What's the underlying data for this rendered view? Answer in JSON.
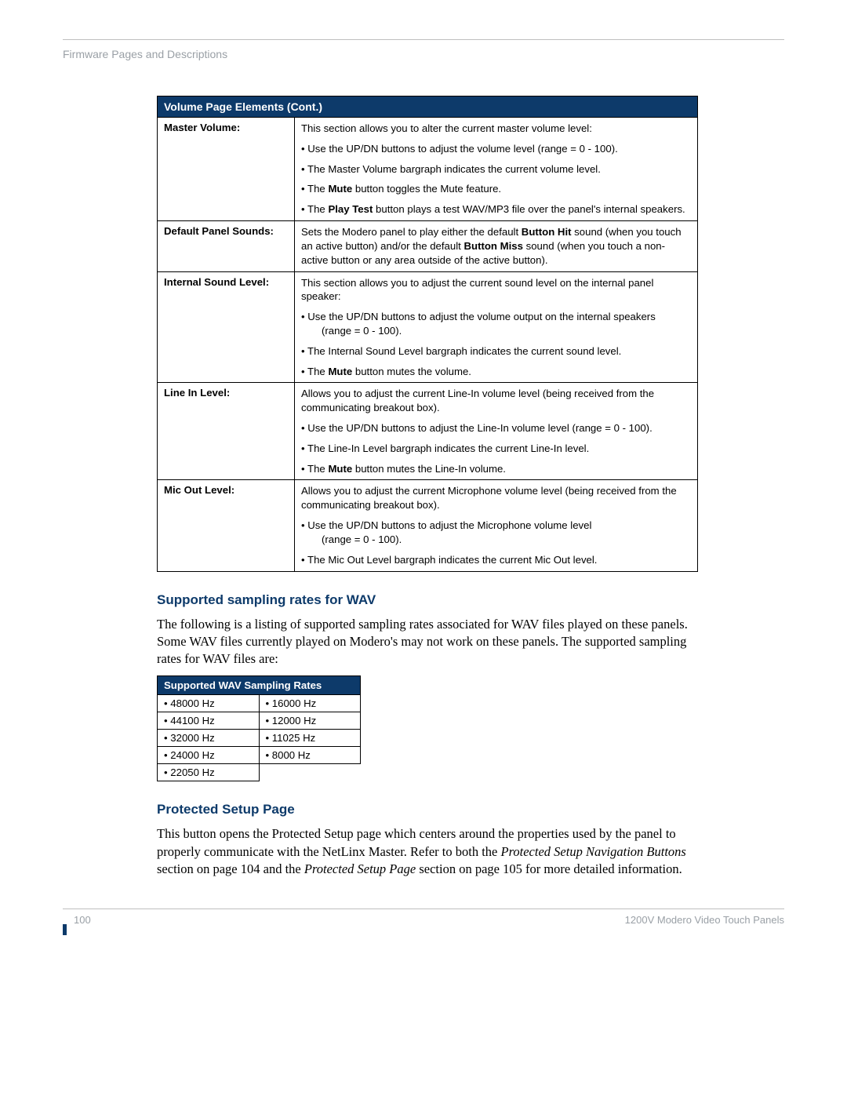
{
  "header": {
    "breadcrumb": "Firmware Pages and Descriptions"
  },
  "table1": {
    "title": "Volume Page Elements (Cont.)",
    "rows": [
      {
        "label": "Master Volume:",
        "lines": [
          {
            "text": "This section allows you to alter the current master volume level:"
          },
          {
            "bullet": true,
            "text": "Use the UP/DN buttons to adjust the volume level (range = 0 - 100)."
          },
          {
            "bullet": true,
            "text": "The Master Volume bargraph indicates the current volume level."
          },
          {
            "bullet": true,
            "html": "The <b>Mute</b> button toggles the Mute feature."
          },
          {
            "bullet": true,
            "html": "The <b>Play Test</b> button plays a test WAV/MP3 file over the panel's internal speakers.",
            "indent_cont": true
          }
        ]
      },
      {
        "label": "Default Panel Sounds:",
        "lines": [
          {
            "html": "Sets the Modero panel to play either the default <b>Button Hit</b> sound (when you touch an active button) and/or the default <b>Button Miss</b> sound (when you touch a non-active button or any area outside of the active button)."
          }
        ]
      },
      {
        "label": "Internal Sound Level:",
        "lines": [
          {
            "text": "This section allows you to adjust the current sound level on the internal panel speaker:"
          },
          {
            "bullet": true,
            "html": "Use the UP/DN buttons to adjust the volume output on the internal speakers<br><span class=\"indent-cont\">(range = 0 - 100).</span>"
          },
          {
            "bullet": true,
            "text": "The Internal Sound Level bargraph indicates the current sound level."
          },
          {
            "bullet": true,
            "html": "The <b>Mute</b> button mutes the volume."
          }
        ]
      },
      {
        "label": "Line In Level:",
        "lines": [
          {
            "text": "Allows you to adjust the current Line-In volume level (being received from the communicating breakout box)."
          },
          {
            "bullet": true,
            "text": "Use the UP/DN buttons to adjust the Line-In volume level (range = 0 - 100)."
          },
          {
            "bullet": true,
            "text": "The Line-In Level bargraph indicates the current Line-In level."
          },
          {
            "bullet": true,
            "html": "The <b>Mute</b> button mutes the Line-In volume."
          }
        ]
      },
      {
        "label": "Mic Out Level:",
        "lines": [
          {
            "text": "Allows you to adjust the current Microphone volume level (being received from the communicating breakout box)."
          },
          {
            "bullet": true,
            "html": "Use the UP/DN buttons to adjust the Microphone volume level<br><span class=\"indent-cont\">(range = 0 - 100).</span>"
          },
          {
            "bullet": true,
            "text": "The Mic Out Level bargraph indicates the current Mic Out level."
          }
        ]
      }
    ]
  },
  "section1": {
    "title": "Supported sampling rates for WAV",
    "para": "The following is a listing of supported sampling rates associated for WAV files played on these panels. Some WAV files currently played on Modero's may not work on these panels. The supported sampling rates for WAV files are:"
  },
  "ratesTable": {
    "title": "Supported WAV Sampling Rates",
    "rows": [
      [
        "48000 Hz",
        "16000 Hz"
      ],
      [
        "44100 Hz",
        "12000 Hz"
      ],
      [
        "32000 Hz",
        "11025 Hz"
      ],
      [
        "24000 Hz",
        "8000 Hz"
      ],
      [
        "22050 Hz",
        ""
      ]
    ]
  },
  "section2": {
    "title": "Protected Setup Page",
    "para_html": "This button opens the Protected Setup page which centers around the properties used by the panel to properly communicate with the NetLinx Master. Refer to both the <span class=\"ital\">Protected Setup Navigation Buttons</span> section on page 104 and the <span class=\"ital\">Protected Setup Page</span> section on page 105 for more detailed information."
  },
  "footer": {
    "page": "100",
    "right": "1200V Modero Video Touch Panels"
  }
}
